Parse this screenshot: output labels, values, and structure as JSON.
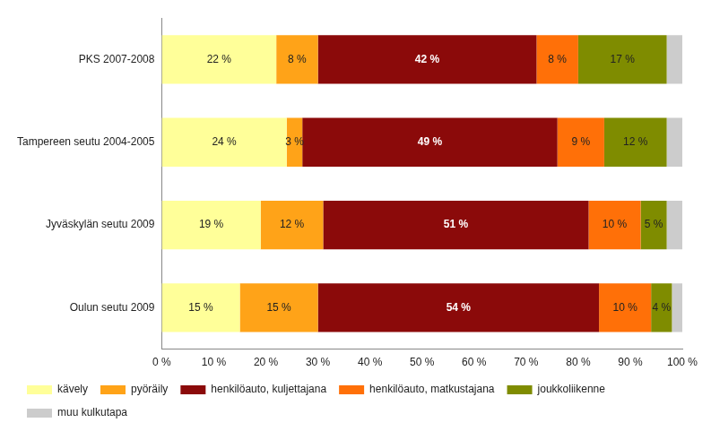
{
  "chart_data": {
    "type": "bar",
    "orientation": "horizontal",
    "stacked": true,
    "data_labels": true,
    "grid": false,
    "legend": "bottom",
    "categories": [
      "PKS 2007-2008",
      "Tampereen seutu 2004-2005",
      "Jyväskylän seutu 2009",
      "Oulun seutu 2009"
    ],
    "xlim": [
      0,
      100
    ],
    "xticks": [
      {
        "value": 0,
        "label": "0 %"
      },
      {
        "value": 10,
        "label": "10 %"
      },
      {
        "value": 20,
        "label": "20 %"
      },
      {
        "value": 30,
        "label": "30 %"
      },
      {
        "value": 40,
        "label": "40 %"
      },
      {
        "value": 50,
        "label": "50 %"
      },
      {
        "value": 60,
        "label": "60 %"
      },
      {
        "value": 70,
        "label": "70 %"
      },
      {
        "value": 80,
        "label": "80 %"
      },
      {
        "value": 90,
        "label": "90 %"
      },
      {
        "value": 100,
        "label": "100 %"
      }
    ],
    "series": [
      {
        "name": "kävely",
        "color": "#FFFF99",
        "values": [
          22,
          24,
          19,
          15
        ],
        "value_labels": [
          "22 %",
          "24 %",
          "19 %",
          "15 %"
        ]
      },
      {
        "name": "pyöräily",
        "color": "#FFA318",
        "values": [
          8,
          3,
          12,
          15
        ],
        "value_labels": [
          "8 %",
          "3 %",
          "12 %",
          "15 %"
        ]
      },
      {
        "name": "henkilöauto, kuljettajana",
        "color": "#8B0A0A",
        "values": [
          42,
          49,
          51,
          54
        ],
        "value_labels": [
          "42 %",
          "49 %",
          "51 %",
          "54 %"
        ]
      },
      {
        "name": "henkilöauto, matkustajana",
        "color": "#FF7008",
        "values": [
          8,
          9,
          10,
          10
        ],
        "value_labels": [
          "8 %",
          "9 %",
          "10 %",
          "10 %"
        ]
      },
      {
        "name": "joukkoliikenne",
        "color": "#7F8C00",
        "values": [
          17,
          12,
          5,
          4
        ],
        "value_labels": [
          "17 %",
          "12 %",
          "5 %",
          "4 %"
        ]
      },
      {
        "name": "muu kulkutapa",
        "color": "#CCCCCC",
        "values": [
          3,
          3,
          3,
          2
        ],
        "data_labels": false
      }
    ]
  }
}
